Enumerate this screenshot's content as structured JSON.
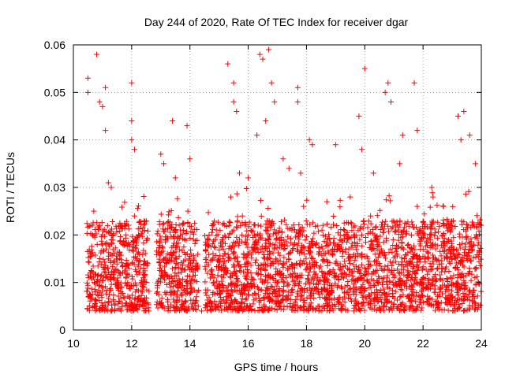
{
  "chart_data": {
    "type": "scatter",
    "title": "Day 244 of 2020, Rate Of TEC Index for receiver dgar",
    "xlabel": "GPS time / hours",
    "ylabel": "ROTI / TECUs",
    "xlim": [
      10,
      24
    ],
    "ylim": [
      0,
      0.06
    ],
    "xticks": [
      10,
      12,
      14,
      16,
      18,
      20,
      22,
      24
    ],
    "yticks": [
      0,
      0.01,
      0.02,
      0.03,
      0.04,
      0.05,
      0.06
    ],
    "xtick_labels": [
      "10",
      "12",
      "14",
      "16",
      "18",
      "20",
      "22",
      "24"
    ],
    "ytick_labels": [
      "0",
      "0.01",
      "0.02",
      "0.03",
      "0.04",
      "0.05",
      "0.06"
    ],
    "grid": true,
    "marker": "+",
    "color": "#ff0000",
    "series": [
      {
        "x": [
          10.5,
          10.5,
          10.8,
          10.9,
          11.0,
          11.1,
          11.1,
          11.2,
          11.3,
          12.0,
          12.0,
          12.0,
          12.1,
          13.0,
          13.1,
          13.4,
          13.5,
          13.9,
          14.0,
          15.3,
          15.5,
          15.5,
          15.6,
          15.7,
          16.0,
          16.3,
          16.4,
          16.5,
          16.6,
          16.7,
          16.8,
          16.9,
          17.2,
          17.4,
          17.7,
          17.7,
          17.8,
          18.1,
          18.2,
          18.7,
          19.0,
          19.5,
          19.8,
          19.9,
          20.0,
          20.3,
          20.7,
          20.8,
          20.9,
          21.2,
          21.3,
          21.7,
          21.8,
          21.8,
          22.3,
          22.7,
          23.2,
          23.3,
          23.4,
          23.6,
          23.8,
          10.6,
          10.9,
          11.4,
          11.7,
          12.4,
          13.2,
          13.7,
          14.2,
          14.7,
          15.1,
          15.8,
          16.2,
          17.0,
          17.5,
          18.4,
          18.9,
          19.3,
          19.7,
          20.5,
          21.0,
          21.5,
          22.1,
          22.5,
          23.0,
          23.5,
          23.9,
          10.7,
          11.3,
          12.2,
          13.3,
          14.4,
          15.4,
          16.6,
          17.9,
          19.1,
          20.2,
          21.6,
          22.9,
          23.7
        ],
        "y": [
          0.053,
          0.05,
          0.058,
          0.048,
          0.047,
          0.051,
          0.042,
          0.031,
          0.03,
          0.052,
          0.044,
          0.04,
          0.038,
          0.037,
          0.035,
          0.044,
          0.032,
          0.043,
          0.036,
          0.056,
          0.052,
          0.048,
          0.046,
          0.033,
          0.032,
          0.041,
          0.058,
          0.057,
          0.044,
          0.059,
          0.052,
          0.048,
          0.036,
          0.034,
          0.051,
          0.048,
          0.033,
          0.04,
          0.039,
          0.027,
          0.039,
          0.028,
          0.045,
          0.038,
          0.055,
          0.033,
          0.05,
          0.052,
          0.048,
          0.035,
          0.041,
          0.052,
          0.042,
          0.026,
          0.03,
          0.026,
          0.045,
          0.04,
          0.046,
          0.041,
          0.035,
          0.022,
          0.015,
          0.012,
          0.018,
          0.011,
          0.014,
          0.009,
          0.013,
          0.006,
          0.019,
          0.024,
          0.017,
          0.01,
          0.021,
          0.008,
          0.016,
          0.012,
          0.02,
          0.014,
          0.011,
          0.018,
          0.009,
          0.013,
          0.007,
          0.015,
          0.01,
          0.025,
          0.019,
          0.016,
          0.022,
          0.004,
          0.028,
          0.021,
          0.026,
          0.018,
          0.024,
          0.02,
          0.017,
          0.022
        ]
      }
    ]
  }
}
